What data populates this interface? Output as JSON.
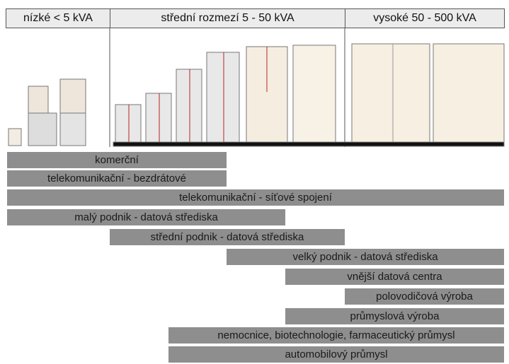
{
  "header": {
    "columns": [
      "nízké < 5 kVA",
      "střední rozmezí 5 - 50 kVA",
      "vysoké 50 - 500 kVA"
    ]
  },
  "bars": [
    "komerční",
    "telekomunikační - bezdrátové",
    "telekomunikační - síťové spojení",
    "malý podnik - datová střediska",
    "střední podnik - datová střediska",
    "velký podnik - datová střediska",
    "vnější datová centra",
    "polovodičová výroba",
    "průmyslová výroba",
    "nemocnice, biotechnologie, farmaceutický průmysl",
    "automobilový průmysl"
  ]
}
